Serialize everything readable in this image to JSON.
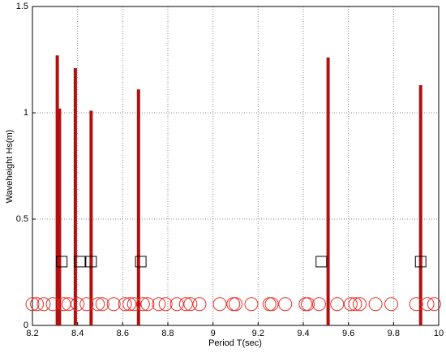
{
  "chart_data": {
    "type": "scatter",
    "x_label": "Period T(sec)",
    "y_label": "Waveheight Hs(m)",
    "xlim": [
      8.2,
      10
    ],
    "xticks": [
      8.2,
      8.4,
      8.6,
      8.8,
      9,
      9.2,
      9.4,
      9.6,
      9.8,
      10
    ],
    "ylim": [
      0,
      1.5
    ],
    "yticks": [
      0,
      0.5,
      1,
      1.5
    ],
    "grid": true,
    "series": [
      {
        "marker": "bar",
        "color": "#b01010",
        "x": [
          8.31,
          8.32,
          8.39,
          8.46,
          8.67,
          9.51,
          9.92
        ],
        "values": [
          1.27,
          1.02,
          1.21,
          1.01,
          1.11,
          1.26,
          1.13
        ]
      },
      {
        "marker": "square",
        "color": "#000000",
        "x": [
          8.33,
          8.41,
          8.46,
          8.68,
          9.48,
          9.92
        ],
        "values": [
          0.3,
          0.3,
          0.3,
          0.3,
          0.3,
          0.3
        ]
      },
      {
        "marker": "circle",
        "color": "#e8302a",
        "x": [
          8.2,
          8.22,
          8.25,
          8.29,
          8.34,
          8.36,
          8.4,
          8.44,
          8.49,
          8.51,
          8.56,
          8.61,
          8.63,
          8.65,
          8.69,
          8.71,
          8.76,
          8.79,
          8.84,
          8.88,
          8.9,
          8.94,
          9.03,
          9.09,
          9.1,
          9.17,
          9.25,
          9.26,
          9.32,
          9.41,
          9.42,
          9.47,
          9.55,
          9.61,
          9.63,
          9.65,
          9.72,
          9.79,
          9.9,
          9.95,
          9.98
        ],
        "values": [
          0.1,
          0.1,
          0.1,
          0.1,
          0.1,
          0.1,
          0.1,
          0.1,
          0.1,
          0.1,
          0.1,
          0.1,
          0.1,
          0.1,
          0.1,
          0.1,
          0.1,
          0.1,
          0.1,
          0.1,
          0.1,
          0.1,
          0.1,
          0.1,
          0.1,
          0.1,
          0.1,
          0.1,
          0.1,
          0.1,
          0.1,
          0.1,
          0.1,
          0.1,
          0.1,
          0.1,
          0.1,
          0.1,
          0.1,
          0.1,
          0.1
        ]
      }
    ]
  }
}
